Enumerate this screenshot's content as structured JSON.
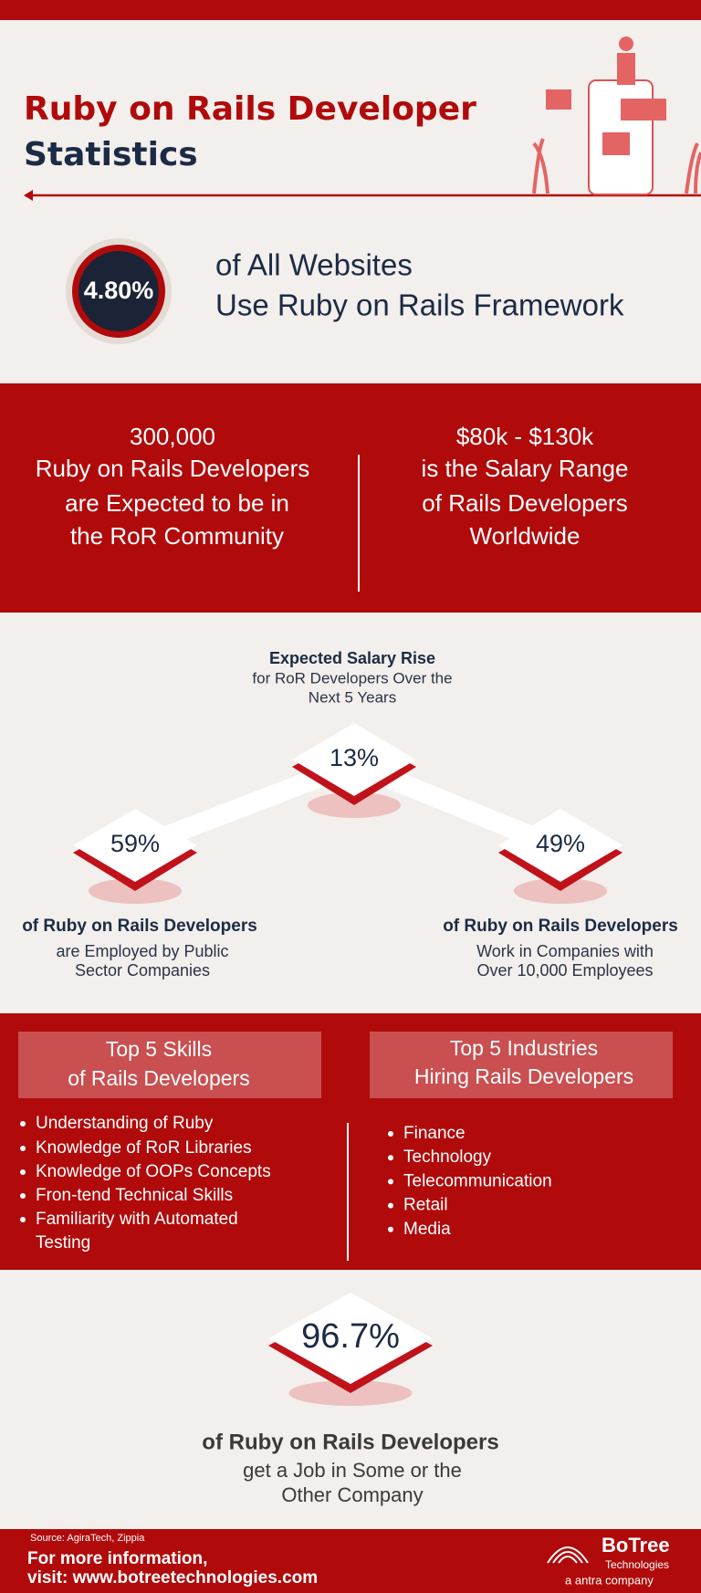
{
  "header": {
    "title_line1": "Ruby on Rails Developer",
    "title_line2": "Statistics"
  },
  "websites": {
    "value": "4.80%",
    "line1": "of All Websites",
    "line2": "Use Ruby on Rails Framework"
  },
  "community": {
    "left": {
      "value": "300,000",
      "line1": "Ruby on Rails Developers",
      "line2": "are Expected to be in",
      "line3": "the RoR Community"
    },
    "right": {
      "value": "$80k - $130k",
      "line1": "is the Salary Range",
      "line2": "of Rails Developers",
      "line3": "Worldwide"
    }
  },
  "salary": {
    "heading": "Expected Salary Rise",
    "line1": "for RoR Developers Over the",
    "line2": "Next 5 Years",
    "value": "13%"
  },
  "public_sector": {
    "value": "59%",
    "heading": "of Ruby on Rails Developers",
    "line1": "are Employed by Public",
    "line2": "Sector Companies"
  },
  "large_companies": {
    "value": "49%",
    "heading": "of Ruby on Rails Developers",
    "line1": "Work in Companies with",
    "line2": "Over 10,000 Employees"
  },
  "skills": {
    "title_line1": "Top 5 Skills",
    "title_line2": "of Rails Developers",
    "items": [
      "Understanding of Ruby",
      "Knowledge of RoR Libraries",
      "Knowledge of OOPs Concepts",
      "Fron-tend Technical Skills",
      "Familiarity with Automated",
      "Testing"
    ]
  },
  "industries": {
    "title_line1": "Top 5 Industries",
    "title_line2": "Hiring Rails Developers",
    "items": [
      "Finance",
      "Technology",
      "Telecommunication",
      "Retail",
      "Media"
    ]
  },
  "employment": {
    "value": "96.7%",
    "heading": "of Ruby on Rails Developers",
    "line1": "get a Job in Some or the",
    "line2": "Other Company"
  },
  "footer": {
    "source": "Source: AgiraTech, Zippia",
    "info_line1": "For more information,",
    "info_line2": "visit: www.botreetechnologies.com",
    "logo_name": "BoTree",
    "logo_sub": "Technologies",
    "logo_tag": "a antra company"
  }
}
